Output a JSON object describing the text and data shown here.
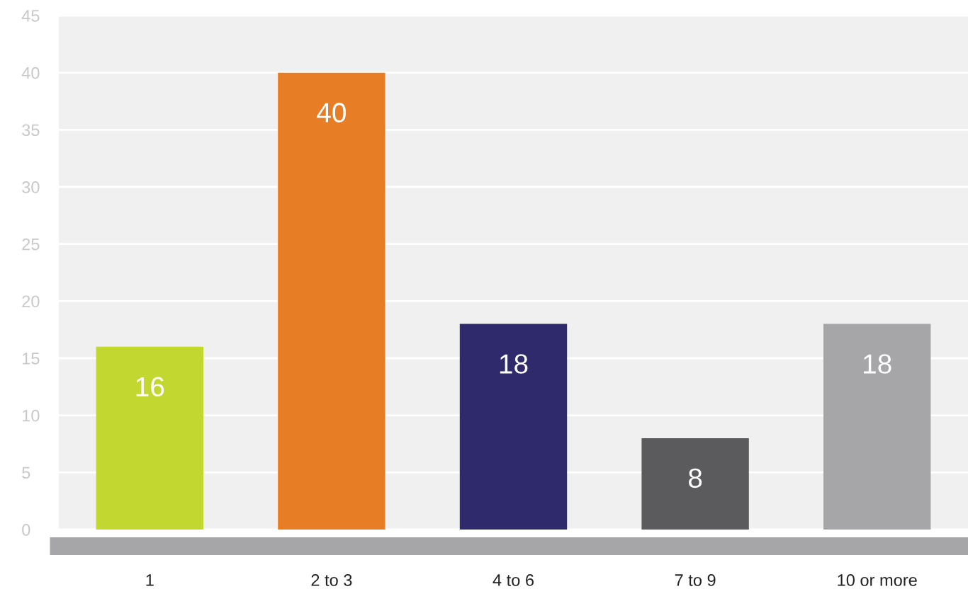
{
  "chart_data": {
    "type": "bar",
    "categories": [
      "1",
      "2 to 3",
      "4 to 6",
      "7 to 9",
      "10 or more"
    ],
    "values": [
      16,
      40,
      18,
      8,
      18
    ],
    "colors": [
      "#c2d72f",
      "#e77d25",
      "#2e2a6b",
      "#5b5b5e",
      "#a6a6a9"
    ],
    "ylim": [
      0,
      45
    ],
    "yticks": [
      0,
      5,
      10,
      15,
      20,
      25,
      30,
      35,
      40,
      45
    ],
    "grid": "y",
    "data_labels": true
  }
}
